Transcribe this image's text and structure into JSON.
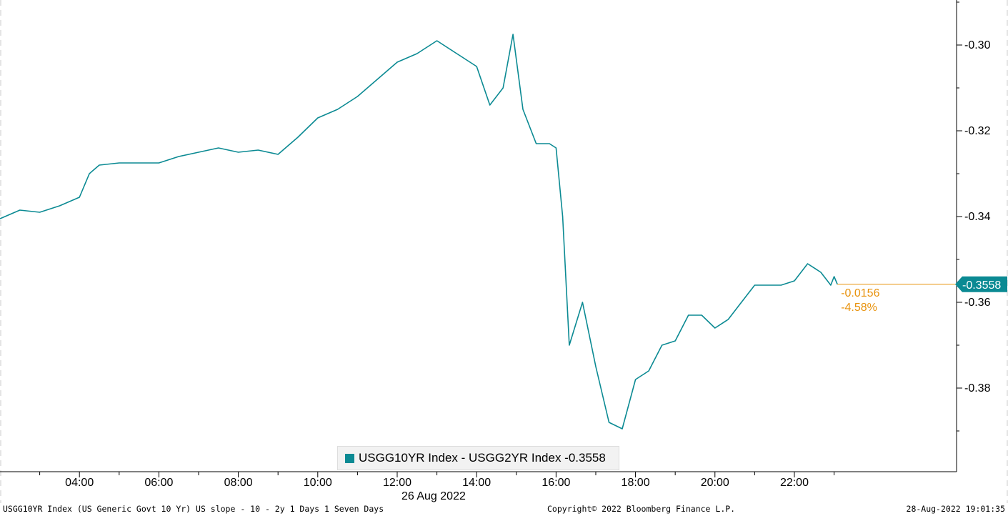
{
  "footer": {
    "left": "USGG10YR Index (US Generic Govt 10 Yr) US slope - 10 - 2y 1 Days 1 Seven Days",
    "center": "Copyright© 2022 Bloomberg Finance L.P.",
    "right": "28-Aug-2022 19:01:35"
  },
  "colors": {
    "series": "#0b8a93",
    "change": "#e8920c",
    "axis": "#000000"
  },
  "chart_data": {
    "type": "line",
    "date_label": "26 Aug 2022",
    "x_ticks": [
      "04:00",
      "06:00",
      "08:00",
      "10:00",
      "12:00",
      "14:00",
      "16:00",
      "18:00",
      "20:00",
      "22:00"
    ],
    "y_ticks": [
      "-0.30",
      "-0.32",
      "-0.34",
      "-0.36",
      "-0.38"
    ],
    "y_tick_values": [
      -0.3,
      -0.32,
      -0.34,
      -0.36,
      -0.38
    ],
    "ylim": [
      -0.3995,
      -0.2895
    ],
    "xlim": [
      "02:00",
      "26:05"
    ],
    "legend": "USGG10YR Index - USGG2YR Index -0.3558",
    "last_value_label": "-0.3558",
    "change_abs": "-0.0156",
    "change_pct": "-4.58%",
    "series": [
      {
        "name": "USGG10YR Index - USGG2YR Index",
        "x": [
          "02:00",
          "02:30",
          "03:00",
          "03:30",
          "04:00",
          "04:15",
          "04:30",
          "05:00",
          "05:30",
          "06:00",
          "06:30",
          "07:00",
          "07:30",
          "08:00",
          "08:30",
          "09:00",
          "09:30",
          "10:00",
          "10:30",
          "11:00",
          "11:30",
          "12:00",
          "12:30",
          "13:00",
          "13:30",
          "14:00",
          "14:20",
          "14:40",
          "14:55",
          "15:10",
          "15:30",
          "15:50",
          "16:00",
          "16:10",
          "16:20",
          "16:40",
          "17:00",
          "17:20",
          "17:40",
          "18:00",
          "18:20",
          "18:40",
          "19:00",
          "19:20",
          "19:40",
          "20:00",
          "20:20",
          "20:40",
          "21:00",
          "21:20",
          "21:40",
          "22:00",
          "22:20",
          "22:40",
          "22:55",
          "23:00",
          "23:05"
        ],
        "values": [
          -0.3405,
          -0.3385,
          -0.339,
          -0.3375,
          -0.3355,
          -0.33,
          -0.328,
          -0.3275,
          -0.3275,
          -0.3275,
          -0.326,
          -0.325,
          -0.324,
          -0.325,
          -0.3245,
          -0.3255,
          -0.3215,
          -0.317,
          -0.315,
          -0.312,
          -0.308,
          -0.304,
          -0.302,
          -0.299,
          -0.302,
          -0.305,
          -0.314,
          -0.31,
          -0.2975,
          -0.315,
          -0.323,
          -0.323,
          -0.324,
          -0.34,
          -0.37,
          -0.36,
          -0.375,
          -0.388,
          -0.3895,
          -0.378,
          -0.376,
          -0.37,
          -0.369,
          -0.363,
          -0.363,
          -0.366,
          -0.364,
          -0.36,
          -0.356,
          -0.356,
          -0.356,
          -0.355,
          -0.351,
          -0.353,
          -0.356,
          -0.354,
          -0.3558
        ]
      }
    ]
  }
}
